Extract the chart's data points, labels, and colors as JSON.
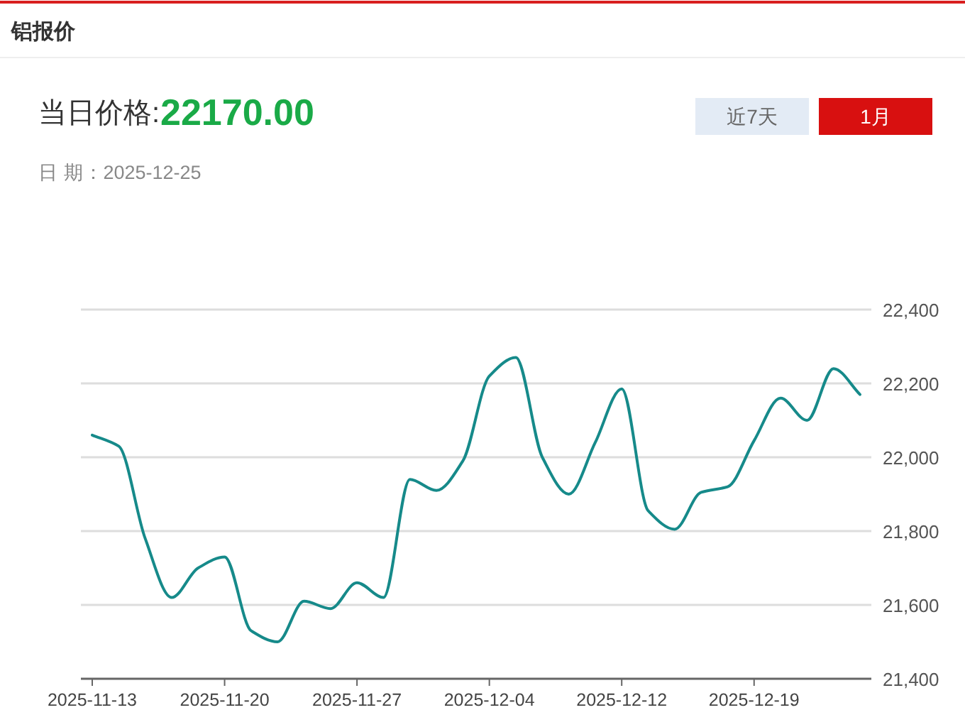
{
  "chart_data": {
    "type": "line",
    "title": "铝报价",
    "annotations": [
      "当日价格:",
      "22170.00",
      "日 期：2025-12-25",
      "近7天",
      "1月"
    ],
    "categories": [
      "2025-11-13",
      null,
      null,
      null,
      null,
      "2025-11-20",
      null,
      null,
      null,
      null,
      "2025-11-27",
      null,
      null,
      null,
      null,
      "2025-12-04",
      null,
      null,
      null,
      null,
      "2025-12-12",
      null,
      null,
      null,
      null,
      "2025-12-19",
      null,
      null,
      null,
      null
    ],
    "series": [
      {
        "color": "#168a8a",
        "values": [
          22060,
          22030,
          21780,
          21620,
          21700,
          21730,
          21530,
          21500,
          21610,
          21590,
          21660,
          21620,
          21940,
          21910,
          21990,
          22220,
          22270,
          22000,
          21900,
          22040,
          22185,
          21855,
          21805,
          21905,
          21920,
          22045,
          22160,
          22100,
          22240,
          22170
        ]
      }
    ],
    "ylim": [
      21400,
      22400
    ],
    "yticks": [
      {
        "value": 21400,
        "label": "21,400"
      },
      {
        "value": 21600,
        "label": "21,600"
      },
      {
        "value": 21800,
        "label": "21,800"
      },
      {
        "value": 22000,
        "label": "22,000"
      },
      {
        "value": 22200,
        "label": "22,200"
      },
      {
        "value": 22400,
        "label": "22,400"
      }
    ],
    "grid": "y"
  }
}
